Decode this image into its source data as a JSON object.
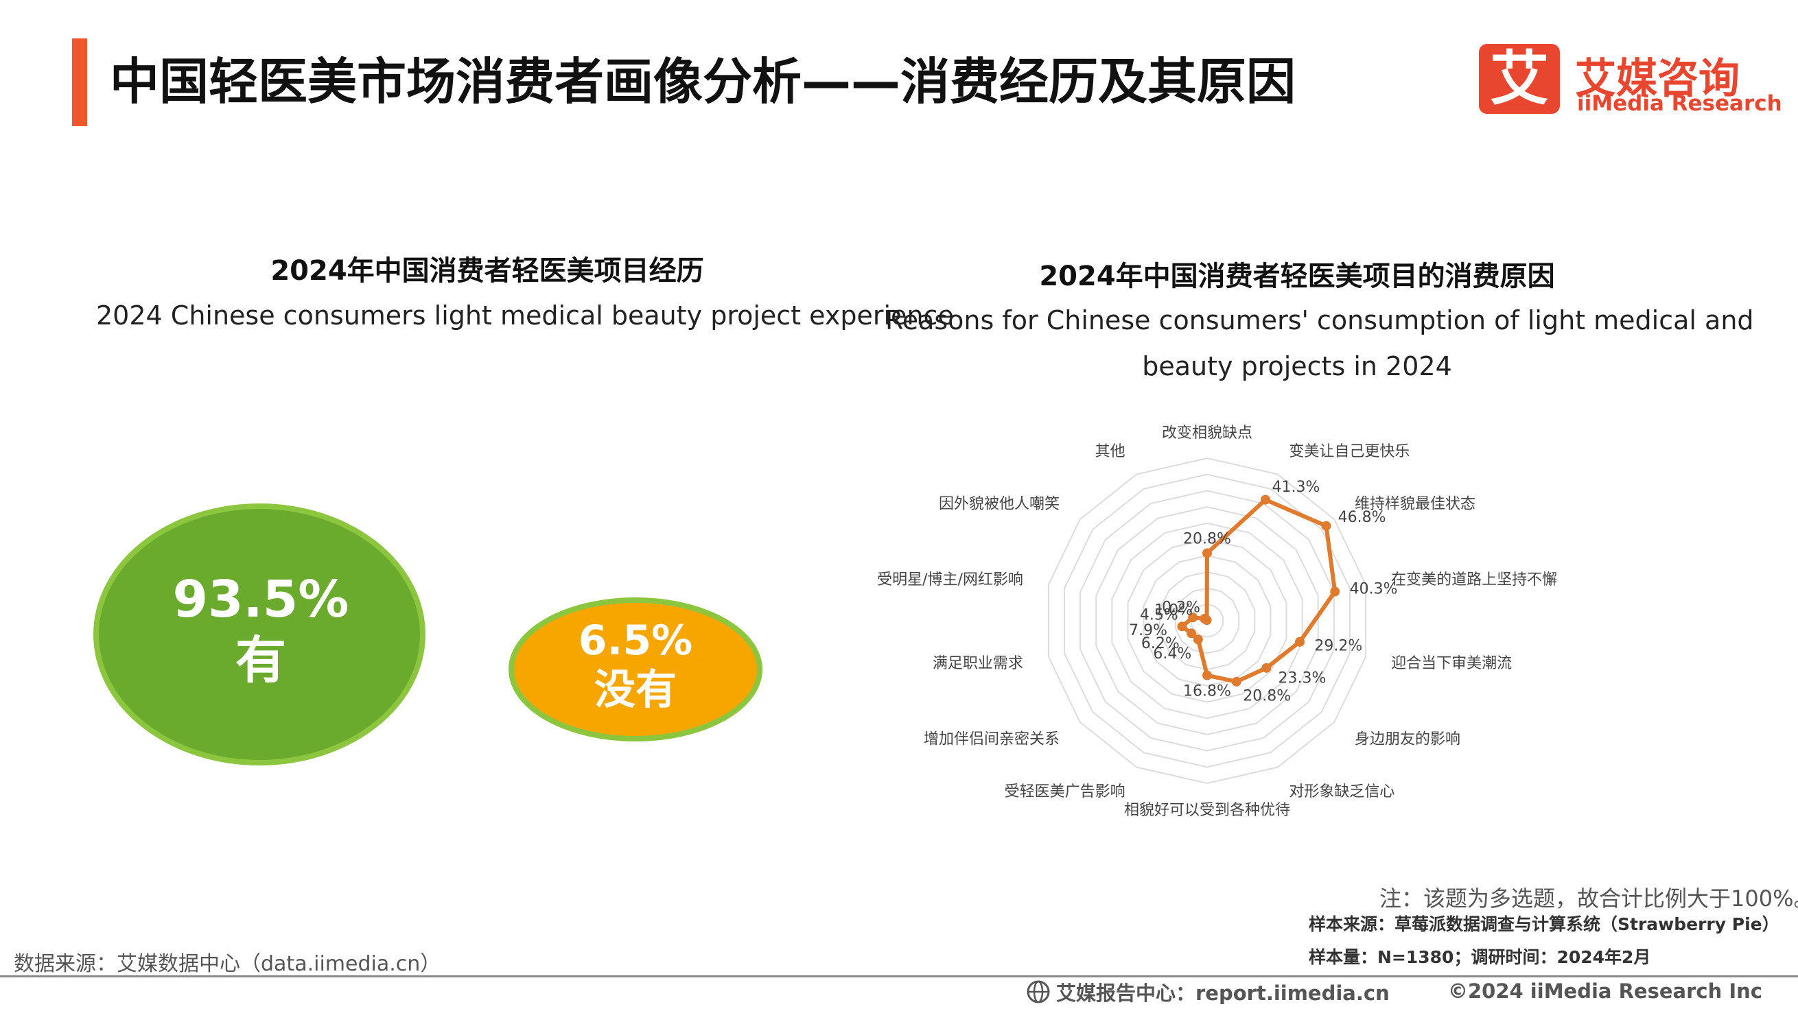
{
  "header": {
    "title": "中国轻医美市场消费者画像分析——消费经历及其原因",
    "logo_glyph": "艾",
    "logo_cn": "艾媒咨询",
    "logo_en": "iiMedia Research"
  },
  "left_chart": {
    "title": "2024年中国消费者轻医美项目经历",
    "subtitle": "2024 Chinese consumers light medical beauty project experience"
  },
  "right_chart": {
    "title": "2024年中国消费者轻医美项目的消费原因",
    "subtitle_line1": "Reasons for Chinese consumers' consumption of light medical and",
    "subtitle_line2": "beauty projects in 2024"
  },
  "chart_data": [
    {
      "type": "bubble",
      "title": "2024年中国消费者轻医美项目经历",
      "items": [
        {
          "label": "有",
          "value": 93.5,
          "value_text": "93.5%",
          "color": "#6aab2e"
        },
        {
          "label": "没有",
          "value": 6.5,
          "value_text": "6.5%",
          "color": "#f7a600"
        }
      ]
    },
    {
      "type": "radar",
      "title": "2024年中国消费者轻医美项目的消费原因",
      "line_color": "#e07b2e",
      "grid_levels": 10,
      "ylim": [
        0,
        50
      ],
      "categories": [
        "改变相貌缺点",
        "变美让自己更快乐",
        "维持样貌最佳状态",
        "在变美的道路上坚持不懈",
        "迎合当下审美潮流",
        "身边朋友的影响",
        "对形象缺乏信心",
        "相貌好可以受到各种优待",
        "受轻医美广告影响",
        "增加伴侣间亲密关系",
        "满足职业需求",
        "受明星/博主/网红影响",
        "因外貌被他人嘲笑",
        "其他"
      ],
      "values": [
        20.8,
        41.3,
        46.8,
        40.3,
        29.2,
        23.3,
        20.8,
        16.8,
        6.4,
        6.2,
        7.9,
        4.5,
        1.0,
        0.2
      ],
      "value_labels": [
        "20.8%",
        "41.3%",
        "46.8%",
        "40.3%",
        "29.2%",
        "23.3%",
        "20.8%",
        "16.8%",
        "6.4%",
        "6.2%",
        "7.9%",
        "4.5%",
        "1.0%",
        "0.2%"
      ]
    }
  ],
  "footer": {
    "note": "注：该题为多选题，故合计比例大于100%。",
    "sample_source": "样本来源：草莓派数据调查与计算系统（Strawberry Pie）",
    "sample_size": "样本量：N=1380；调研时间：2024年2月",
    "data_source": "数据来源：艾媒数据中心（data.iimedia.cn）",
    "report_center": "艾媒报告中心：report.iimedia.cn",
    "copyright": "©2024  iiMedia Research  Inc"
  }
}
